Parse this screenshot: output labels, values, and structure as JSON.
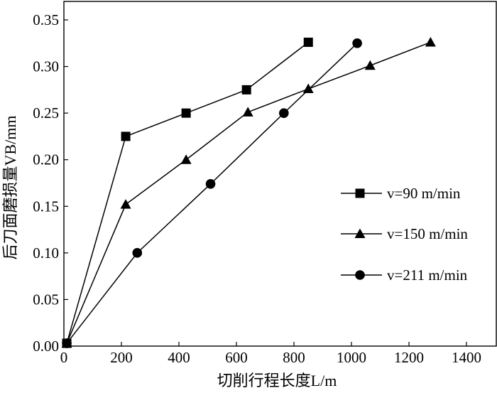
{
  "chart_data": {
    "type": "line",
    "xlabel": "切削行程长度L/m",
    "ylabel": "后刀面磨损量VB/mm",
    "xlim": [
      0,
      1400
    ],
    "ylim": [
      0,
      0.35
    ],
    "xticks": [
      "0",
      "200",
      "400",
      "600",
      "800",
      "1000",
      "1200",
      "1400"
    ],
    "yticks": [
      "0.00",
      "0.05",
      "0.10",
      "0.15",
      "0.20",
      "0.25",
      "0.30",
      "0.35"
    ],
    "legend_position": "right",
    "grid": false,
    "series": [
      {
        "name": "v=90 m/min",
        "marker": "square",
        "x": [
          10,
          215,
          425,
          635,
          850
        ],
        "y": [
          0.003,
          0.225,
          0.25,
          0.275,
          0.326
        ]
      },
      {
        "name": "v=150 m/min",
        "marker": "triangle",
        "x": [
          10,
          215,
          425,
          640,
          850,
          1065,
          1275
        ],
        "y": [
          0.003,
          0.152,
          0.2,
          0.251,
          0.276,
          0.301,
          0.326
        ]
      },
      {
        "name": "v=211 m/min",
        "marker": "circle",
        "x": [
          10,
          255,
          510,
          765,
          1020
        ],
        "y": [
          0.003,
          0.1,
          0.174,
          0.25,
          0.325
        ]
      }
    ]
  }
}
